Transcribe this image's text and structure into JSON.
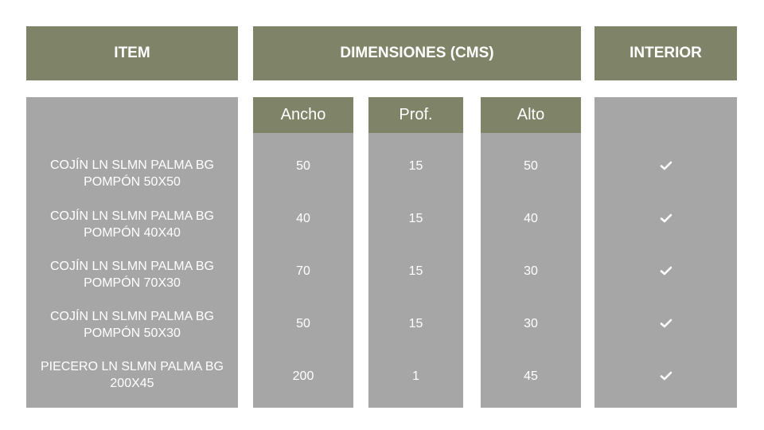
{
  "headers": {
    "item": "ITEM",
    "dimensions": "DIMENSIONES (CMS)",
    "interior": "INTERIOR"
  },
  "subheaders": {
    "ancho": "Ancho",
    "prof": "Prof.",
    "alto": "Alto"
  },
  "rows": [
    {
      "item": "COJÍN LN SLMN PALMA BG POMPÓN 50X50",
      "ancho": "50",
      "prof": "15",
      "alto": "50",
      "interior": true
    },
    {
      "item": "COJÍN LN SLMN PALMA BG POMPÓN 40X40",
      "ancho": "40",
      "prof": "15",
      "alto": "40",
      "interior": true
    },
    {
      "item": "COJÍN LN SLMN PALMA BG POMPÓN 70X30",
      "ancho": "70",
      "prof": "15",
      "alto": "30",
      "interior": true
    },
    {
      "item": "COJÍN LN SLMN PALMA BG POMPÓN 50X30",
      "ancho": "50",
      "prof": "15",
      "alto": "30",
      "interior": true
    },
    {
      "item": "PIECERO LN SLMN PALMA BG 200X45",
      "ancho": "200",
      "prof": "1",
      "alto": "45",
      "interior": true
    }
  ],
  "check_icon": "checkmark-icon",
  "colors": {
    "header_bg": "#7f8469",
    "body_bg": "#a6a6a6",
    "text": "#ffffff"
  }
}
